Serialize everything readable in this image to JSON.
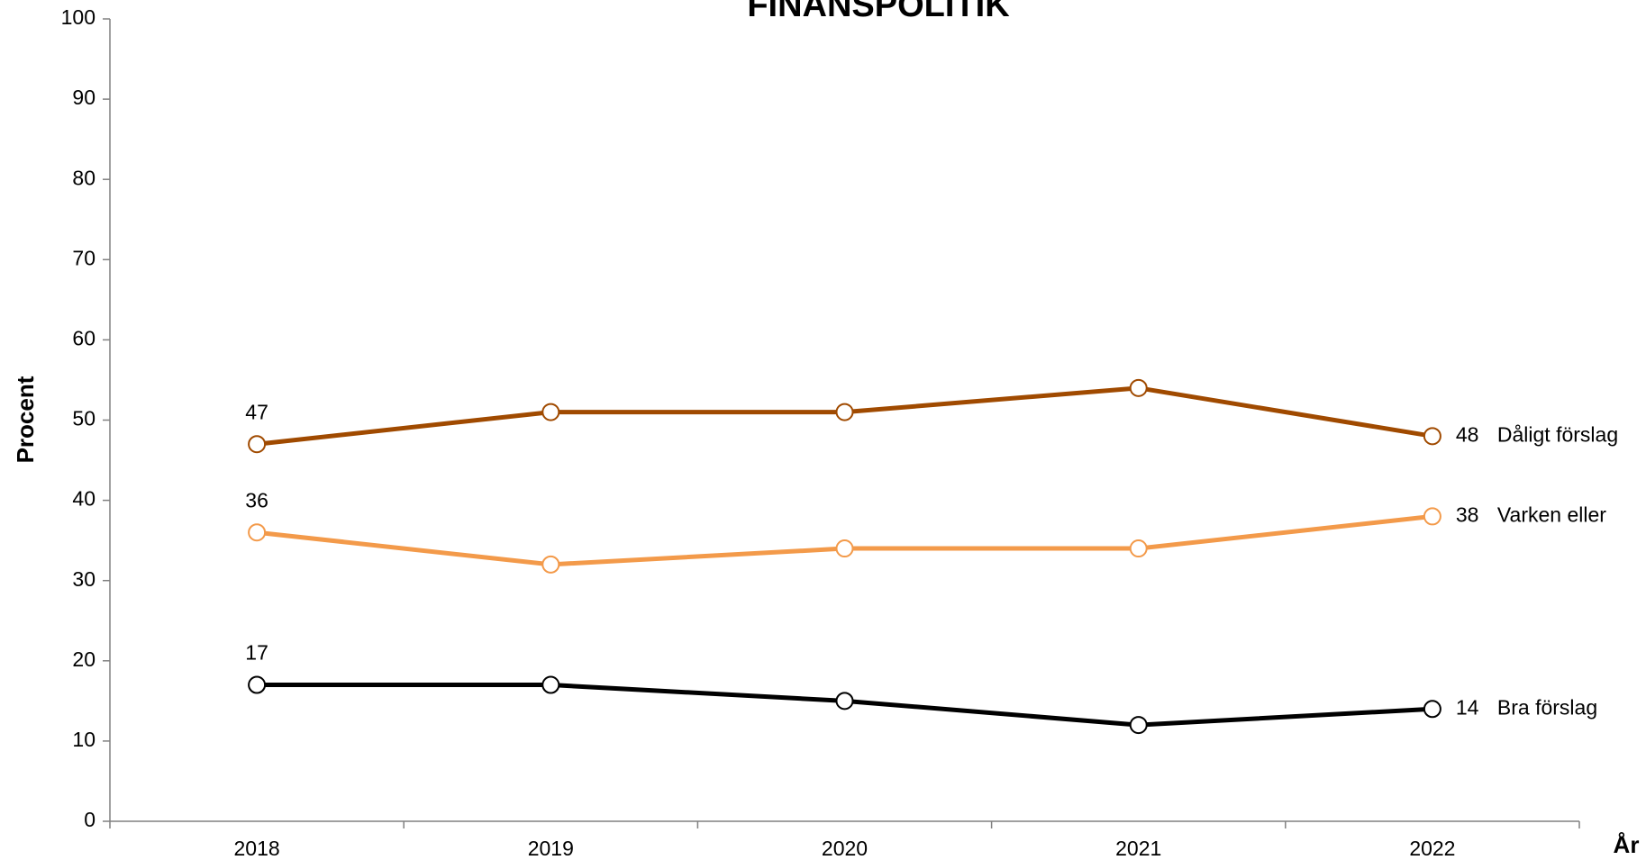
{
  "chart_data": {
    "type": "line",
    "title": "FINANSPOLITIK",
    "x_label": "År",
    "y_label": "Procent",
    "categories": [
      "2018",
      "2019",
      "2020",
      "2021",
      "2022"
    ],
    "series": [
      {
        "name": "Dåligt förslag",
        "color": "#a04a00",
        "values": [
          47,
          51,
          51,
          54,
          48
        ]
      },
      {
        "name": "Varken eller",
        "color": "#f39a4a",
        "values": [
          36,
          32,
          34,
          34,
          38
        ]
      },
      {
        "name": "Bra förslag",
        "color": "#000000",
        "values": [
          17,
          17,
          15,
          12,
          14
        ]
      }
    ],
    "ylim": [
      0,
      100
    ],
    "yticks": [
      0,
      10,
      20,
      30,
      40,
      50,
      60,
      70,
      80,
      90,
      100
    ],
    "grid": false
  }
}
